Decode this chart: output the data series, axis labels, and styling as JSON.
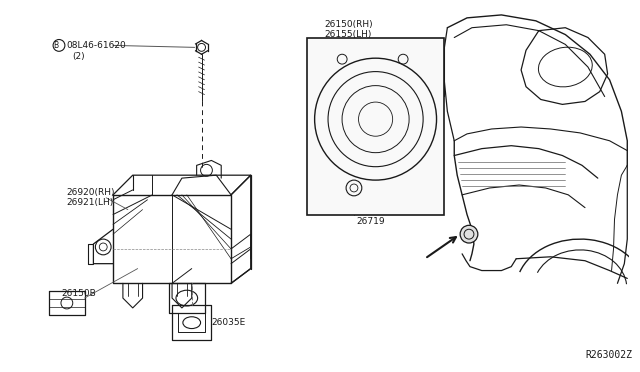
{
  "bg_color": "#ffffff",
  "line_color": "#1a1a1a",
  "diagram_code": "R263002Z",
  "font_size": 6.5,
  "labels": {
    "screw": "08L46-61620",
    "screw_qty": "(2)",
    "bracket_rh": "26920(RH)",
    "bracket_lh": "26921(LH)",
    "lamp_rh": "26150(RH)",
    "lamp_lh": "26155(LH)",
    "bulb": "26719",
    "clip": "26150B",
    "socket": "26035E"
  }
}
